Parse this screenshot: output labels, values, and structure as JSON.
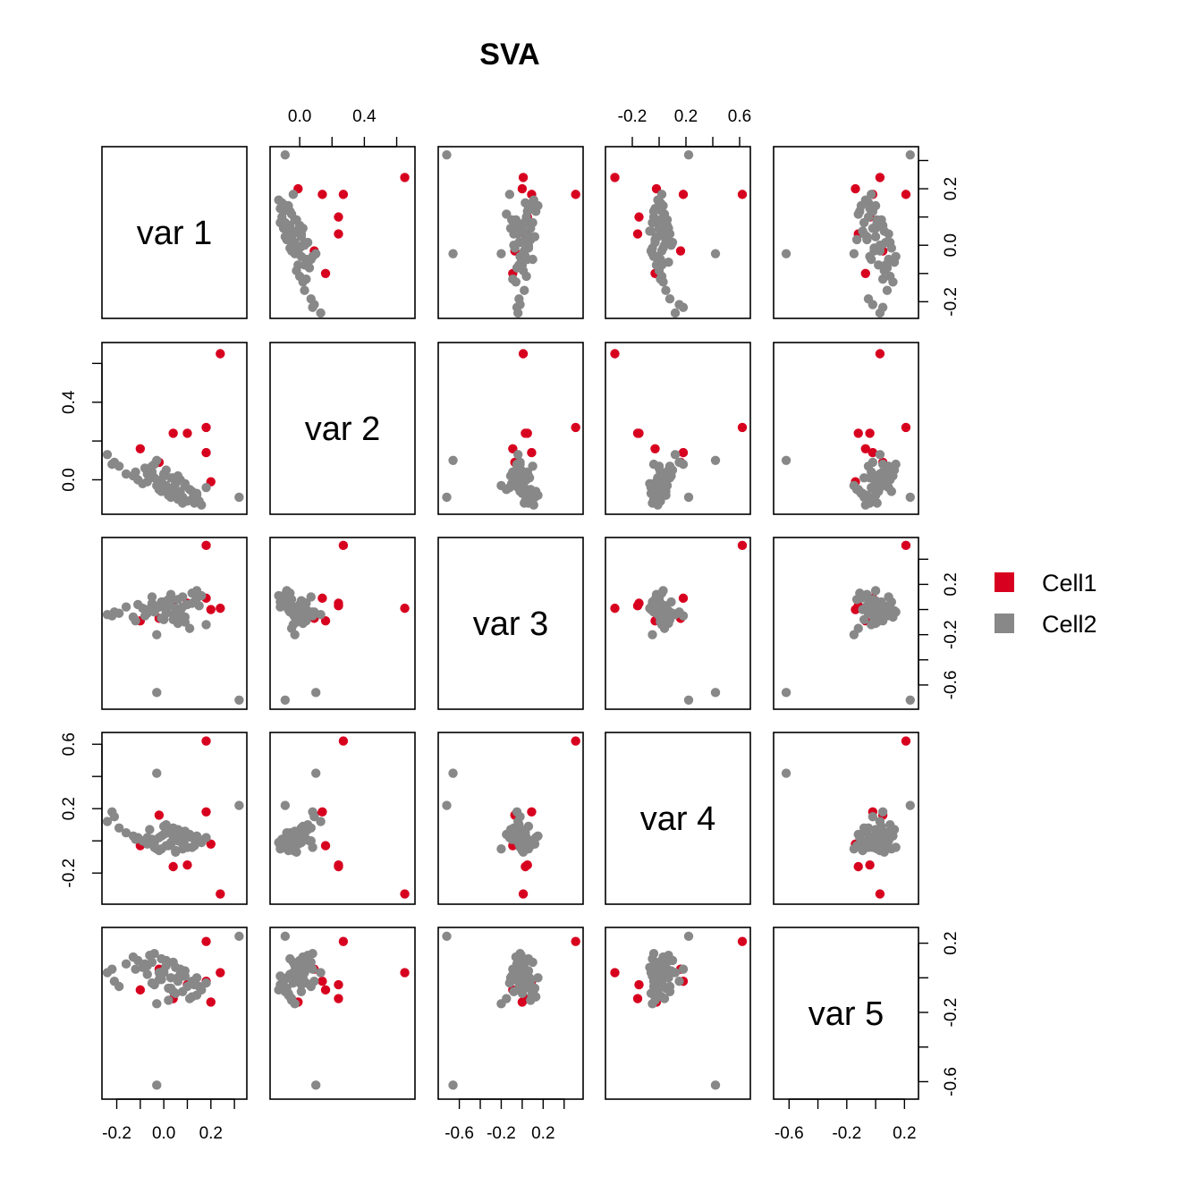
{
  "chart_data": {
    "type": "scatter",
    "subtype": "scatterplot-matrix",
    "title": "SVA",
    "variables": [
      "var 1",
      "var 2",
      "var 3",
      "var 4",
      "var 5"
    ],
    "ranges": [
      [
        -0.24,
        0.33
      ],
      [
        -0.15,
        0.68
      ],
      [
        -0.75,
        0.53
      ],
      [
        -0.36,
        0.64
      ],
      [
        -0.67,
        0.26
      ]
    ],
    "ticks": {
      "var 1": [
        -0.2,
        -0.1,
        0.0,
        0.1,
        0.2,
        0.3
      ],
      "var 2": [
        0.0,
        0.2,
        0.4,
        0.6
      ],
      "var 3": [
        -0.6,
        -0.4,
        -0.2,
        0.0,
        0.2,
        0.4
      ],
      "var 4": [
        -0.2,
        0.0,
        0.2,
        0.4,
        0.6
      ],
      "var 5": [
        -0.6,
        -0.4,
        -0.2,
        0.0,
        0.2
      ]
    },
    "tick_labels": {
      "var 1": [
        "-0.2",
        "",
        "0.0",
        "",
        "0.2",
        ""
      ],
      "var 2": [
        "0.0",
        "",
        "0.4",
        ""
      ],
      "var 3": [
        "-0.6",
        "",
        "-0.2",
        "",
        "0.2",
        ""
      ],
      "var 4": [
        "-0.2",
        "",
        "0.2",
        "",
        "0.6"
      ],
      "var 5": [
        "-0.6",
        "",
        "-0.2",
        "",
        "0.2"
      ]
    },
    "legend": {
      "position": "right",
      "entries": [
        {
          "label": "Cell1",
          "color": "#d7011f"
        },
        {
          "label": "Cell2",
          "color": "#888888"
        }
      ]
    },
    "series": [
      {
        "name": "Cell1",
        "color": "#d7011f",
        "points": [
          [
            0.24,
            0.65,
            0.01,
            -0.33,
            0.03
          ],
          [
            0.18,
            0.27,
            0.51,
            0.62,
            0.21
          ],
          [
            0.18,
            0.14,
            0.09,
            0.18,
            -0.02
          ],
          [
            0.04,
            0.24,
            0.03,
            -0.16,
            -0.12
          ],
          [
            0.1,
            0.24,
            0.05,
            -0.15,
            -0.04
          ],
          [
            -0.1,
            0.16,
            -0.09,
            -0.03,
            -0.07
          ],
          [
            0.2,
            -0.01,
            0.0,
            -0.02,
            -0.14
          ],
          [
            -0.02,
            0.09,
            -0.07,
            0.16,
            0.05
          ]
        ]
      },
      {
        "name": "Cell2",
        "color": "#888888",
        "points": [
          [
            0.32,
            -0.09,
            -0.72,
            0.22,
            0.24
          ],
          [
            -0.03,
            0.1,
            -0.66,
            0.42,
            -0.62
          ],
          [
            -0.22,
            0.08,
            -0.05,
            0.18,
            0.05
          ],
          [
            -0.21,
            0.09,
            -0.02,
            0.15,
            -0.02
          ],
          [
            -0.24,
            0.13,
            -0.04,
            0.12,
            0.03
          ],
          [
            -0.19,
            0.07,
            -0.03,
            0.08,
            -0.05
          ],
          [
            -0.16,
            0.03,
            0.02,
            0.05,
            0.08
          ],
          [
            -0.13,
            0.02,
            -0.06,
            0.03,
            0.12
          ],
          [
            -0.11,
            0.0,
            0.04,
            0.02,
            0.1
          ],
          [
            -0.09,
            -0.02,
            0.01,
            0.0,
            0.06
          ],
          [
            -0.07,
            -0.01,
            -0.03,
            -0.02,
            0.02
          ],
          [
            -0.05,
            0.04,
            0.05,
            0.01,
            -0.03
          ],
          [
            -0.04,
            0.08,
            -0.02,
            -0.04,
            0.14
          ],
          [
            -0.02,
            -0.05,
            0.02,
            0.02,
            -0.01
          ],
          [
            -0.01,
            -0.06,
            0.06,
            -0.05,
            0.11
          ],
          [
            0.0,
            0.03,
            -0.08,
            0.04,
            0.03
          ],
          [
            0.01,
            -0.03,
            -0.01,
            -0.03,
            0.07
          ],
          [
            0.02,
            -0.08,
            0.03,
            0.05,
            -0.06
          ],
          [
            0.03,
            0.01,
            0.07,
            -0.01,
            0.0
          ],
          [
            0.04,
            -0.04,
            -0.04,
            0.03,
            0.09
          ],
          [
            0.05,
            -0.07,
            0.0,
            -0.06,
            -0.09
          ],
          [
            0.06,
            -0.1,
            0.08,
            0.0,
            -0.02
          ],
          [
            0.07,
            0.0,
            -0.05,
            0.06,
            0.05
          ],
          [
            0.08,
            -0.09,
            0.1,
            -0.02,
            -0.08
          ],
          [
            0.09,
            -0.02,
            -0.1,
            0.01,
            0.01
          ],
          [
            0.1,
            -0.11,
            0.04,
            -0.04,
            -0.05
          ],
          [
            0.12,
            -0.06,
            0.13,
            0.02,
            -0.11
          ],
          [
            0.13,
            -0.12,
            0.06,
            -0.03,
            -0.04
          ],
          [
            0.14,
            -0.08,
            0.15,
            0.03,
            0.0
          ],
          [
            0.16,
            -0.13,
            0.11,
            -0.01,
            -0.07
          ],
          [
            0.18,
            -0.04,
            -0.12,
            0.02,
            -0.03
          ],
          [
            -0.06,
            0.05,
            -0.01,
            0.07,
            0.13
          ],
          [
            -0.08,
            0.06,
            -0.05,
            0.0,
            0.08
          ],
          [
            -0.03,
            -0.03,
            -0.2,
            -0.05,
            -0.15
          ],
          [
            0.0,
            0.02,
            0.06,
            0.09,
            0.04
          ],
          [
            0.11,
            -0.05,
            -0.15,
            0.04,
            -0.12
          ],
          [
            0.05,
            -0.02,
            0.01,
            -0.07,
            0.06
          ],
          [
            -0.01,
            0.0,
            -0.07,
            0.03,
            -0.01
          ],
          [
            0.03,
            -0.09,
            0.12,
            -0.02,
            -0.06
          ],
          [
            0.07,
            -0.06,
            -0.02,
            0.05,
            0.02
          ],
          [
            -0.12,
            0.04,
            -0.09,
            0.01,
            0.05
          ],
          [
            0.14,
            -0.07,
            0.09,
            0.0,
            -0.1
          ],
          [
            0.08,
            -0.12,
            0.02,
            -0.05,
            0.01
          ],
          [
            0.01,
            0.05,
            -0.03,
            0.1,
            0.1
          ],
          [
            -0.04,
            0.01,
            0.03,
            -0.01,
            -0.04
          ],
          [
            0.09,
            -0.03,
            -0.06,
            0.06,
            0.04
          ],
          [
            0.12,
            -0.1,
            0.05,
            -0.04,
            -0.02
          ],
          [
            -0.07,
            0.03,
            0.0,
            0.02,
            0.07
          ],
          [
            0.02,
            -0.05,
            0.08,
            -0.03,
            -0.13
          ],
          [
            0.06,
            0.02,
            -0.11,
            0.07,
            0.0
          ],
          [
            -0.02,
            -0.04,
            0.02,
            -0.06,
            0.03
          ],
          [
            0.15,
            -0.11,
            0.03,
            0.01,
            -0.05
          ],
          [
            -0.05,
            0.07,
            0.1,
            0.0,
            0.09
          ],
          [
            0.04,
            0.01,
            -0.08,
            0.08,
            -0.08
          ]
        ]
      }
    ]
  }
}
